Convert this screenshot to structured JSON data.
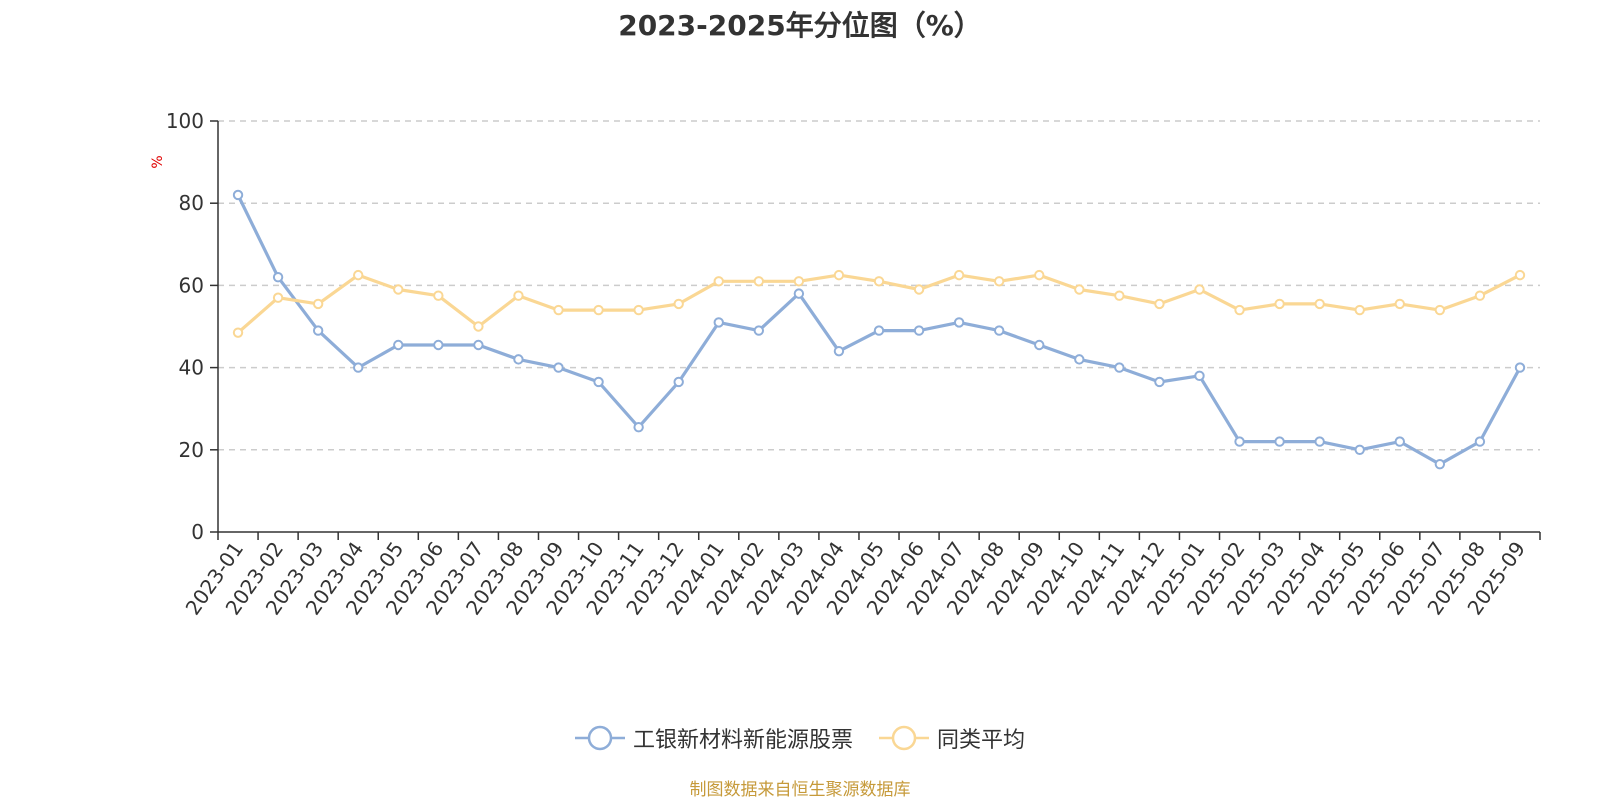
{
  "chart_data": {
    "type": "line",
    "title": "2023-2025年分位图（%）",
    "ylabel": "%",
    "ylim": [
      0,
      100
    ],
    "yticks": [
      0,
      20,
      40,
      60,
      80,
      100
    ],
    "grid": true,
    "legend_position": "bottom",
    "categories": [
      "2023-01",
      "2023-02",
      "2023-03",
      "2023-04",
      "2023-05",
      "2023-06",
      "2023-07",
      "2023-08",
      "2023-09",
      "2023-10",
      "2023-11",
      "2023-12",
      "2024-01",
      "2024-02",
      "2024-03",
      "2024-04",
      "2024-05",
      "2024-06",
      "2024-07",
      "2024-08",
      "2024-09",
      "2024-10",
      "2024-11",
      "2024-12",
      "2025-01",
      "2025-02",
      "2025-03",
      "2025-04",
      "2025-05",
      "2025-06",
      "2025-07",
      "2025-08",
      "2025-09"
    ],
    "series": [
      {
        "name": "工银新材料新能源股票",
        "color": "#8eadd8",
        "values": [
          82,
          62,
          49,
          40,
          45.5,
          45.5,
          45.5,
          42,
          40,
          36.5,
          25.5,
          36.5,
          51,
          49,
          58,
          44,
          49,
          49,
          51,
          49,
          45.5,
          42,
          40,
          36.5,
          38,
          22,
          22,
          22,
          20,
          22,
          16.5,
          22,
          40
        ]
      },
      {
        "name": "同类平均",
        "color": "#fad794",
        "values": [
          48.5,
          57,
          55.5,
          62.5,
          59,
          57.5,
          50,
          57.5,
          54,
          54,
          54,
          55.5,
          61,
          61,
          61,
          62.5,
          61,
          59,
          62.5,
          61,
          62.5,
          59,
          57.5,
          55.5,
          59,
          54,
          55.5,
          55.5,
          54,
          55.5,
          54,
          57.5,
          62.5
        ]
      }
    ]
  },
  "colors": {
    "ylabel": "#e00000",
    "source_note": "#c69a3a",
    "axis": "#333333",
    "grid": "#cccccc"
  },
  "source_note": "制图数据来自恒生聚源数据库"
}
